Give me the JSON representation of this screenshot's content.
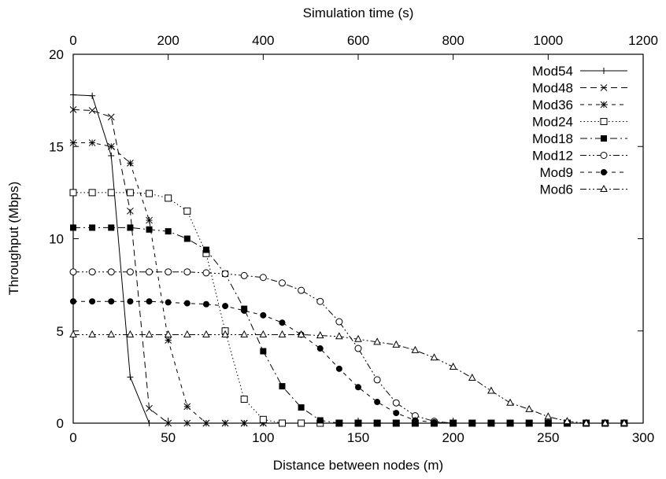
{
  "chart_data": {
    "type": "line",
    "xlabel": "Distance between nodes (m)",
    "ylabel": "Throughput (Mbps)",
    "x2label": "Simulation time (s)",
    "xlim": [
      0,
      300
    ],
    "ylim": [
      0,
      20
    ],
    "x2lim": [
      0,
      1200
    ],
    "xticks": [
      "0",
      "50",
      "100",
      "150",
      "200",
      "250",
      "300"
    ],
    "yticks": [
      "0",
      "5",
      "10",
      "15",
      "20"
    ],
    "x2ticks": [
      "0",
      "200",
      "400",
      "600",
      "800",
      "1000",
      "1200"
    ],
    "grid": false,
    "legend_position": "top-right",
    "x": [
      0,
      10,
      20,
      30,
      40,
      50,
      60,
      70,
      80,
      90,
      100,
      110,
      120,
      130,
      140,
      150,
      160,
      170,
      180,
      190,
      200,
      210,
      220,
      230,
      240,
      250,
      260,
      270,
      280,
      290
    ],
    "series": [
      {
        "name": "Mod54",
        "marker": "plus",
        "dash": "solid",
        "values": [
          17.8,
          17.75,
          14.5,
          2.5,
          0,
          0,
          0,
          0,
          0,
          0,
          0,
          0,
          0,
          0,
          0,
          0,
          0,
          0,
          0,
          0,
          0,
          0,
          0,
          0,
          0,
          0,
          0,
          0,
          0,
          0
        ]
      },
      {
        "name": "Mod48",
        "marker": "x",
        "dash": "dash",
        "values": [
          17.0,
          16.95,
          16.6,
          11.5,
          0.8,
          0,
          0,
          0,
          0,
          0,
          0,
          0,
          0,
          0,
          0,
          0,
          0,
          0,
          0,
          0,
          0,
          0,
          0,
          0,
          0,
          0,
          0,
          0,
          0,
          0
        ]
      },
      {
        "name": "Mod36",
        "marker": "star",
        "dash": "shortdash",
        "values": [
          15.2,
          15.2,
          15.0,
          14.1,
          11.0,
          4.5,
          0.9,
          0,
          0,
          0,
          0,
          0,
          0,
          0,
          0,
          0,
          0,
          0,
          0,
          0,
          0,
          0,
          0,
          0,
          0,
          0,
          0,
          0,
          0,
          0
        ]
      },
      {
        "name": "Mod24",
        "marker": "open-square",
        "dash": "dot",
        "values": [
          12.5,
          12.5,
          12.5,
          12.5,
          12.45,
          12.2,
          11.5,
          9.2,
          5.0,
          1.3,
          0.2,
          0,
          0,
          0,
          0,
          0,
          0,
          0,
          0,
          0,
          0,
          0,
          0,
          0,
          0,
          0,
          0,
          0,
          0,
          0
        ]
      },
      {
        "name": "Mod18",
        "marker": "filled-square",
        "dash": "dashdot",
        "values": [
          10.6,
          10.6,
          10.6,
          10.6,
          10.5,
          10.4,
          10.0,
          9.4,
          8.1,
          6.2,
          3.9,
          2.0,
          0.85,
          0.15,
          0,
          0,
          0,
          0,
          0,
          0,
          0,
          0,
          0,
          0,
          0,
          0,
          0,
          0,
          0,
          0
        ]
      },
      {
        "name": "Mod12",
        "marker": "open-circle",
        "dash": "dashdotdot",
        "values": [
          8.2,
          8.2,
          8.2,
          8.2,
          8.2,
          8.2,
          8.2,
          8.15,
          8.1,
          8.0,
          7.9,
          7.6,
          7.2,
          6.6,
          5.5,
          4.05,
          2.35,
          1.1,
          0.4,
          0.1,
          0,
          0,
          0,
          0,
          0,
          0,
          0,
          0,
          0,
          0
        ]
      },
      {
        "name": "Mod9",
        "marker": "filled-circle",
        "dash": "shortdash",
        "values": [
          6.6,
          6.6,
          6.6,
          6.6,
          6.6,
          6.55,
          6.5,
          6.45,
          6.35,
          6.1,
          5.85,
          5.45,
          4.8,
          4.05,
          2.95,
          1.95,
          1.15,
          0.55,
          0.15,
          0.05,
          0,
          0,
          0,
          0,
          0,
          0,
          0,
          0,
          0,
          0
        ]
      },
      {
        "name": "Mod6",
        "marker": "open-triangle",
        "dash": "dashdotdot",
        "values": [
          4.8,
          4.8,
          4.8,
          4.8,
          4.8,
          4.8,
          4.8,
          4.8,
          4.8,
          4.8,
          4.8,
          4.8,
          4.8,
          4.75,
          4.7,
          4.55,
          4.4,
          4.25,
          3.95,
          3.55,
          3.05,
          2.45,
          1.75,
          1.1,
          0.75,
          0.35,
          0.1,
          0,
          0,
          0
        ]
      }
    ]
  }
}
